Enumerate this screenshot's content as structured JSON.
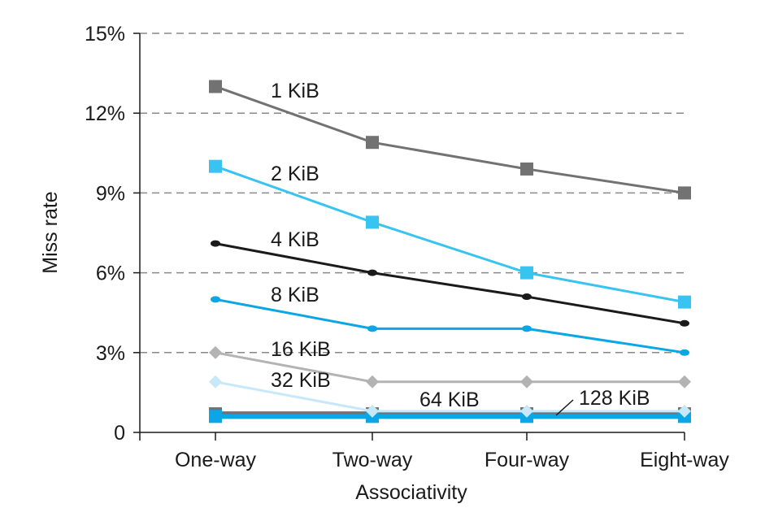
{
  "chart_data": {
    "type": "line",
    "title": "",
    "xlabel": "Associativity",
    "ylabel": "Miss rate",
    "categories": [
      "One-way",
      "Two-way",
      "Four-way",
      "Eight-way"
    ],
    "ylim": [
      0,
      15
    ],
    "yticks": [
      0,
      3,
      6,
      9,
      12,
      15
    ],
    "ytick_labels": [
      "0",
      "3%",
      "6%",
      "9%",
      "12%",
      "15%"
    ],
    "grid": "horizontal dashed",
    "series": [
      {
        "name": "1 KiB",
        "values": [
          13.0,
          10.9,
          9.9,
          9.0
        ],
        "color": "#727272",
        "marker": "square"
      },
      {
        "name": "2 KiB",
        "values": [
          10.0,
          7.9,
          6.0,
          4.9
        ],
        "color": "#37c4f0",
        "marker": "square"
      },
      {
        "name": "4 KiB",
        "values": [
          7.1,
          6.0,
          5.1,
          4.1
        ],
        "color": "#1a1a1a",
        "marker": "circle"
      },
      {
        "name": "8 KiB",
        "values": [
          5.0,
          3.9,
          3.9,
          3.0
        ],
        "color": "#0aa6e6",
        "marker": "circle"
      },
      {
        "name": "16 KiB",
        "values": [
          3.0,
          1.9,
          1.9,
          1.9
        ],
        "color": "#b3b3b3",
        "marker": "diamond"
      },
      {
        "name": "32 KiB",
        "values": [
          1.9,
          0.8,
          0.8,
          0.8
        ],
        "color": "#c6e8f8",
        "marker": "diamond"
      },
      {
        "name": "64 KiB",
        "values": [
          0.7,
          0.7,
          0.7,
          0.7
        ],
        "color": "#727272",
        "marker": "square"
      },
      {
        "name": "128 KiB",
        "values": [
          0.6,
          0.6,
          0.6,
          0.6
        ],
        "color": "#0aa6e6",
        "marker": "square"
      }
    ]
  }
}
